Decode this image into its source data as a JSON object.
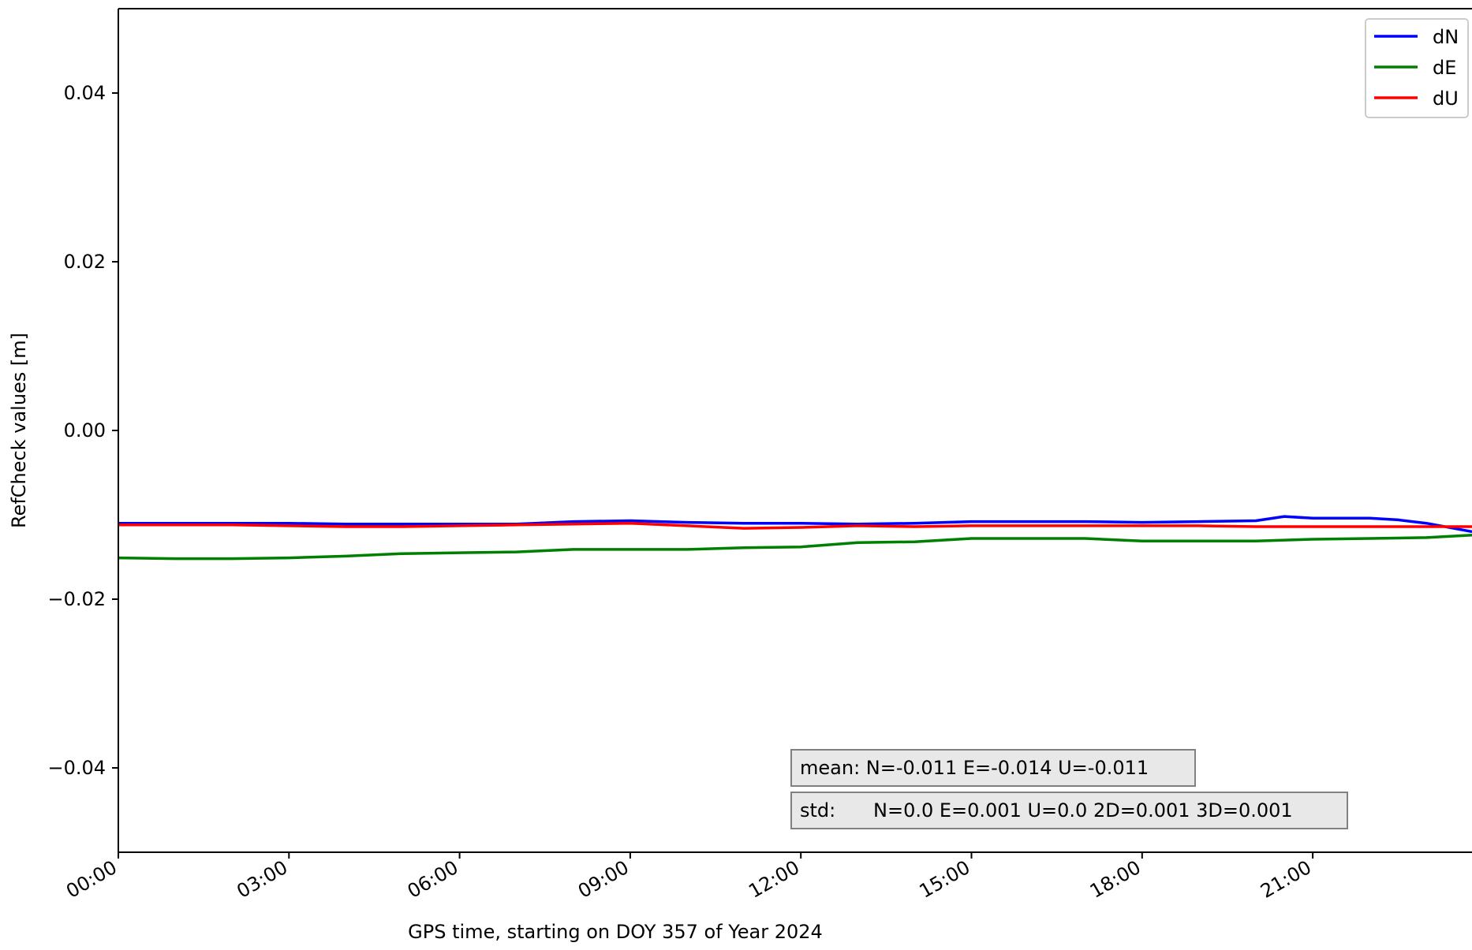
{
  "chart_data": {
    "type": "line",
    "xlabel": "GPS time, starting on DOY 357 of Year 2024",
    "ylabel": "RefCheck values [m]",
    "xlim": [
      0,
      23.8
    ],
    "ylim": [
      -0.05,
      0.05
    ],
    "x_ticks": [
      0,
      3,
      6,
      9,
      12,
      15,
      18,
      21
    ],
    "x_tick_labels": [
      "00:00",
      "03:00",
      "06:00",
      "09:00",
      "12:00",
      "15:00",
      "18:00",
      "21:00"
    ],
    "y_ticks": [
      -0.04,
      -0.02,
      0.0,
      0.02,
      0.04
    ],
    "y_tick_labels": [
      "−0.04",
      "−0.02",
      "0.00",
      "0.02",
      "0.04"
    ],
    "grid": false,
    "legend_position": "top-right",
    "x_unit": "hours",
    "series": [
      {
        "name": "dN",
        "color": "#0000ff",
        "x": [
          0,
          1,
          2,
          3,
          4,
          5,
          6,
          7,
          8,
          9,
          10,
          11,
          12,
          13,
          14,
          15,
          16,
          17,
          18,
          19,
          20,
          20.5,
          21,
          22,
          22.5,
          23,
          23.8
        ],
        "values": [
          -0.011,
          -0.011,
          -0.011,
          -0.011,
          -0.0111,
          -0.0111,
          -0.0111,
          -0.0111,
          -0.0108,
          -0.0107,
          -0.0109,
          -0.011,
          -0.011,
          -0.0111,
          -0.011,
          -0.0108,
          -0.0108,
          -0.0108,
          -0.0109,
          -0.0108,
          -0.0107,
          -0.0102,
          -0.0104,
          -0.0104,
          -0.0106,
          -0.011,
          -0.012
        ]
      },
      {
        "name": "dE",
        "color": "#008000",
        "x": [
          0,
          1,
          2,
          3,
          4,
          5,
          6,
          7,
          8,
          9,
          10,
          11,
          12,
          13,
          14,
          15,
          16,
          17,
          18,
          19,
          20,
          21,
          22,
          23,
          23.8
        ],
        "values": [
          -0.0151,
          -0.0152,
          -0.0152,
          -0.0151,
          -0.0149,
          -0.0146,
          -0.0145,
          -0.0144,
          -0.0141,
          -0.0141,
          -0.0141,
          -0.0139,
          -0.0138,
          -0.0133,
          -0.0132,
          -0.0128,
          -0.0128,
          -0.0128,
          -0.0131,
          -0.0131,
          -0.0131,
          -0.0129,
          -0.0128,
          -0.0127,
          -0.0124
        ]
      },
      {
        "name": "dU",
        "color": "#ff0000",
        "x": [
          0,
          1,
          2,
          3,
          4,
          5,
          6,
          7,
          8,
          9,
          10,
          11,
          12,
          13,
          14,
          15,
          16,
          17,
          18,
          19,
          20,
          21,
          22,
          23,
          23.8
        ],
        "values": [
          -0.0112,
          -0.0112,
          -0.0112,
          -0.0113,
          -0.0114,
          -0.0114,
          -0.0113,
          -0.0112,
          -0.0111,
          -0.011,
          -0.0113,
          -0.0116,
          -0.0115,
          -0.0113,
          -0.0114,
          -0.0113,
          -0.0113,
          -0.0113,
          -0.0113,
          -0.0113,
          -0.0114,
          -0.0114,
          -0.0114,
          -0.0114,
          -0.0114
        ]
      }
    ],
    "annotations": {
      "mean": "mean: N=-0.011 E=-0.014 U=-0.011",
      "std_label": "std:",
      "std_values": "N=0.0 E=0.001 U=0.0 2D=0.001 3D=0.001"
    }
  }
}
